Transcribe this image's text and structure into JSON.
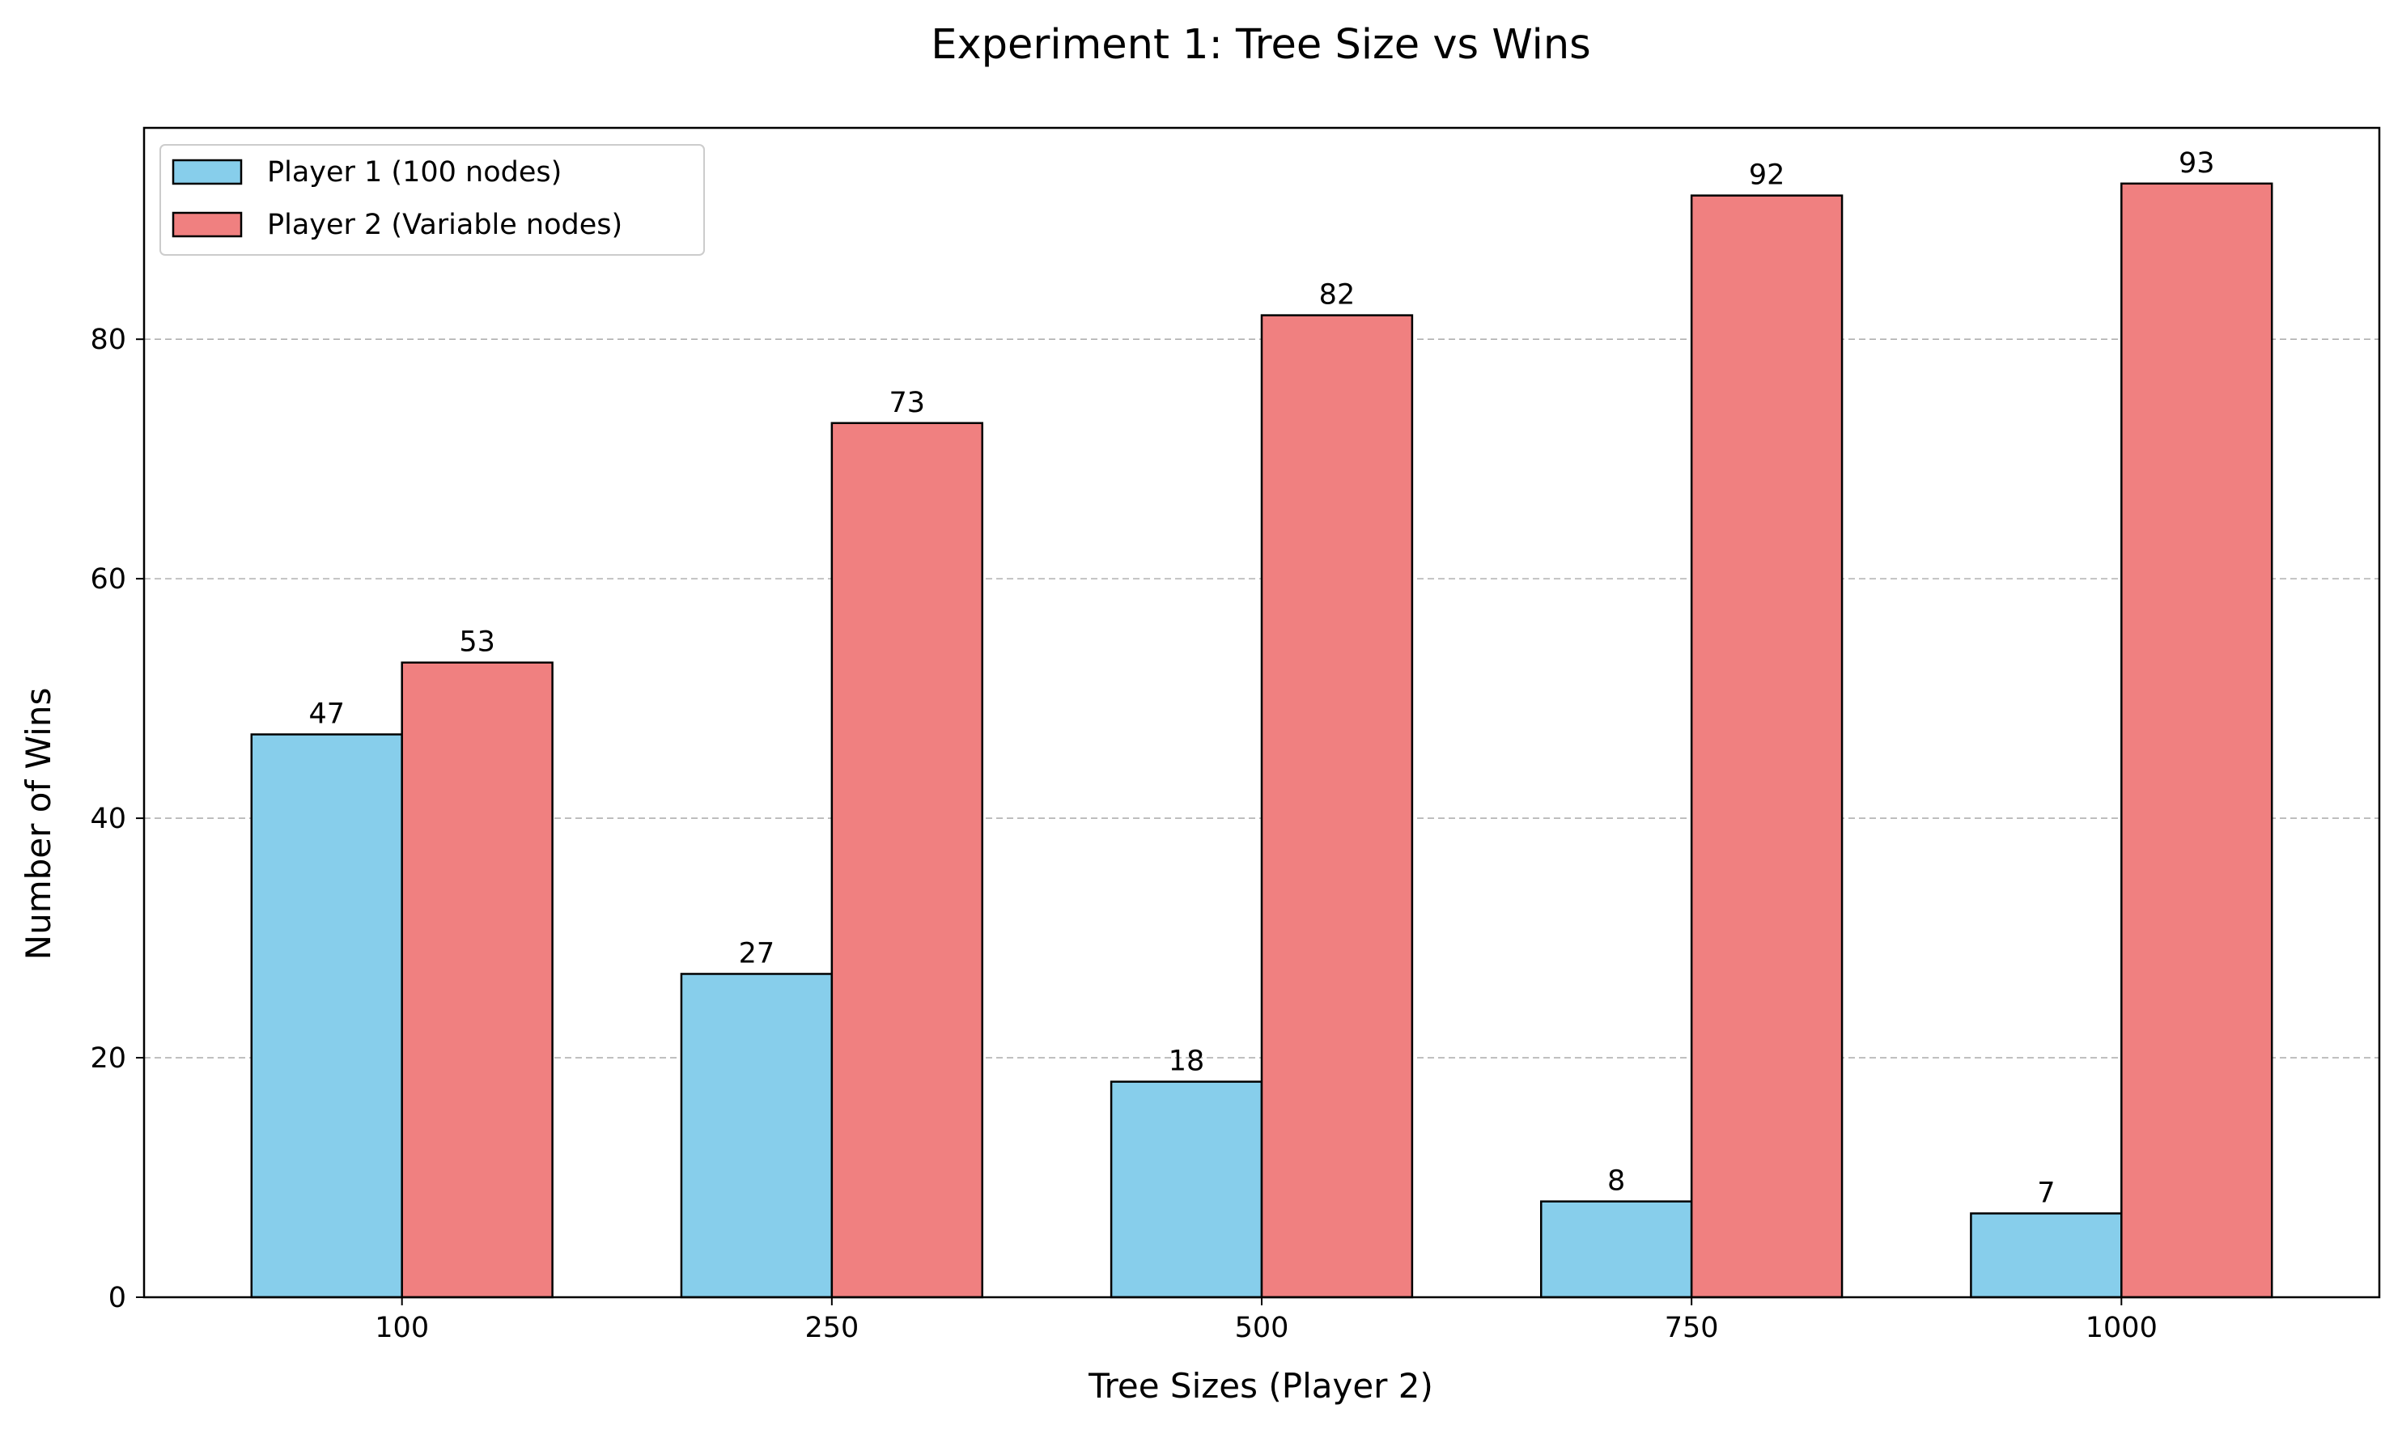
{
  "chart_data": {
    "type": "bar",
    "title": "Experiment 1: Tree Size vs Wins",
    "xlabel": "Tree Sizes (Player 2)",
    "ylabel": "Number of Wins",
    "categories": [
      "100",
      "250",
      "500",
      "750",
      "1000"
    ],
    "series": [
      {
        "name": "Player 1 (100 nodes)",
        "values": [
          47,
          27,
          18,
          8,
          7
        ],
        "color": "#87CEEB"
      },
      {
        "name": "Player 2 (Variable nodes)",
        "values": [
          53,
          73,
          82,
          92,
          93
        ],
        "color": "#F08080"
      }
    ],
    "ylim": [
      0,
      97.65
    ],
    "yticks": [
      0,
      20,
      40,
      60,
      80
    ],
    "grid": "y-dashed",
    "legend_position": "top-left",
    "data_labels": true
  }
}
